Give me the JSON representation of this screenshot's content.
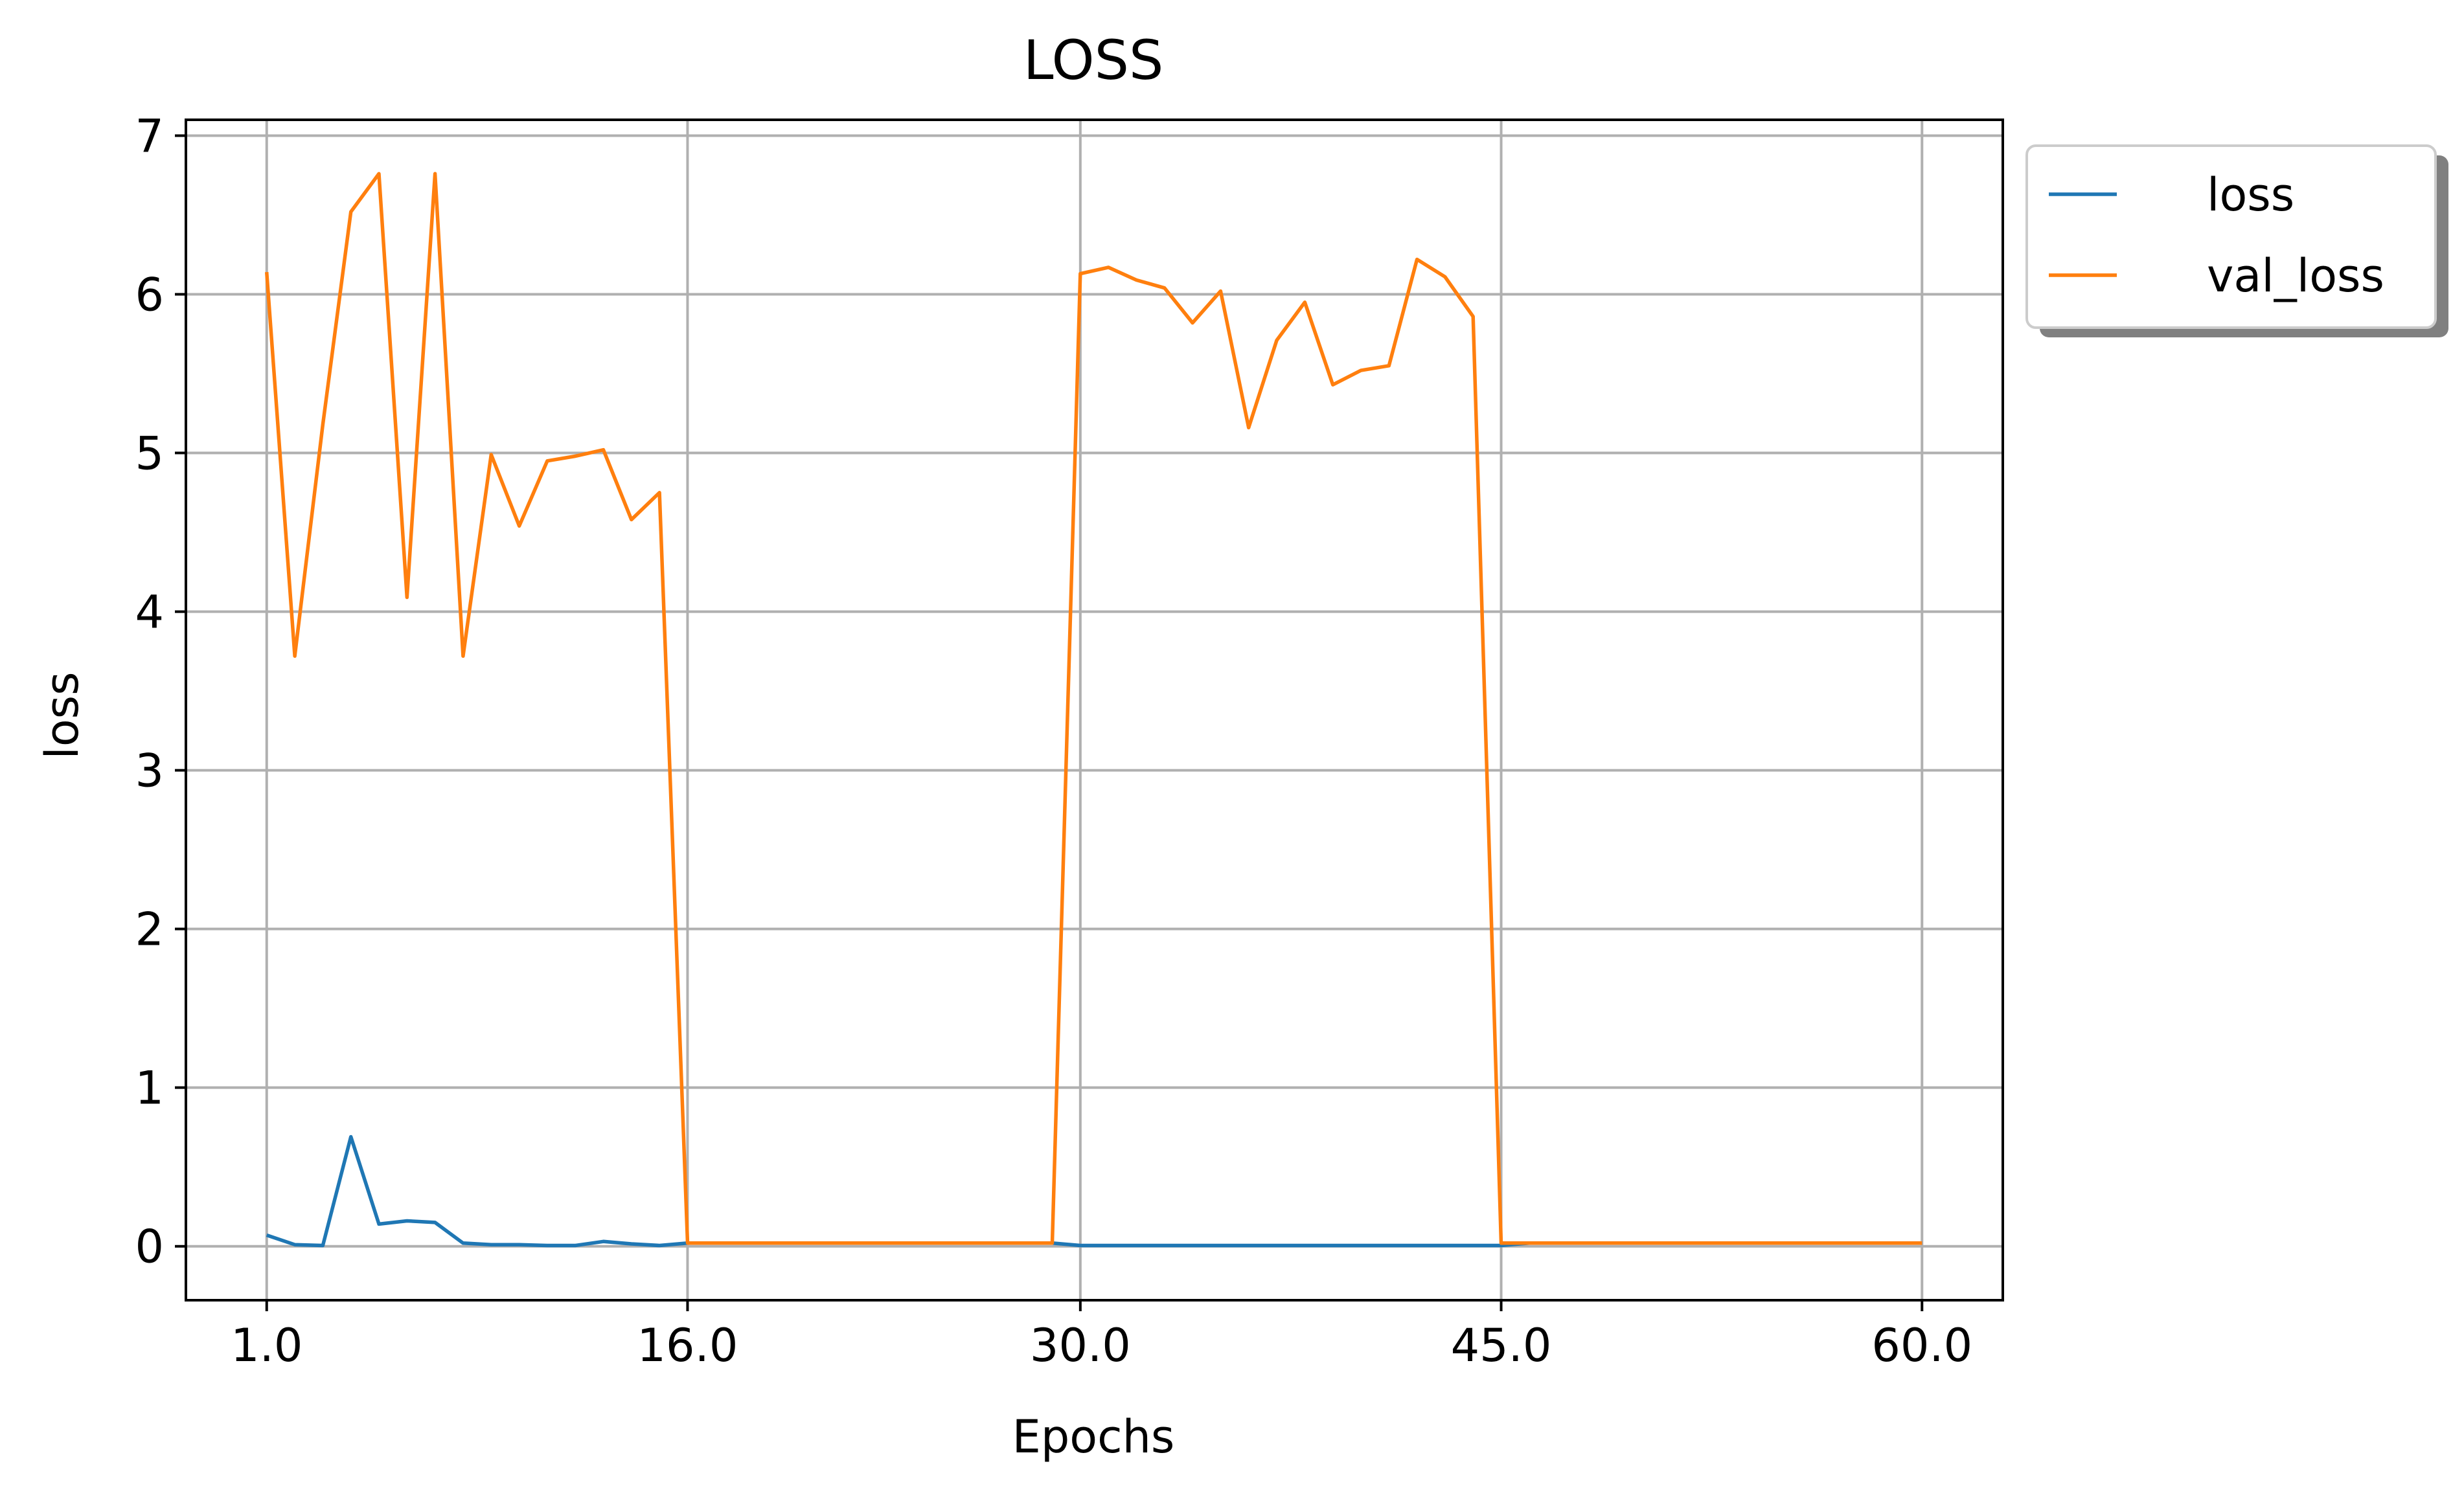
{
  "chart_data": {
    "type": "line",
    "title": "LOSS",
    "xlabel": "Epochs",
    "ylabel": "loss",
    "xlim": [
      -1.88,
      62.88
    ],
    "ylim": [
      -0.34,
      7.1
    ],
    "xticks": [
      1,
      16,
      30,
      45,
      60
    ],
    "xtick_labels": [
      "1.0",
      "16.0",
      "30.0",
      "45.0",
      "60.0"
    ],
    "yticks": [
      0,
      1,
      2,
      3,
      4,
      5,
      6,
      7
    ],
    "ytick_labels": [
      "0",
      "1",
      "2",
      "3",
      "4",
      "5",
      "6",
      "7"
    ],
    "grid": true,
    "legend_position": "outside top-right",
    "x": [
      1,
      2,
      3,
      4,
      5,
      6,
      7,
      8,
      9,
      10,
      11,
      12,
      13,
      14,
      15,
      16,
      17,
      18,
      19,
      20,
      21,
      22,
      23,
      24,
      25,
      26,
      27,
      28,
      29,
      30,
      31,
      32,
      33,
      34,
      35,
      36,
      37,
      38,
      39,
      40,
      41,
      42,
      43,
      44,
      45,
      46,
      47,
      48,
      49,
      50,
      51,
      52,
      53,
      54,
      55,
      56,
      57,
      58,
      59,
      60
    ],
    "series": [
      {
        "name": "loss",
        "color": "#1f77b4",
        "values": [
          0.07,
          0.01,
          0.005,
          0.69,
          0.14,
          0.16,
          0.15,
          0.02,
          0.01,
          0.01,
          0.005,
          0.005,
          0.03,
          0.015,
          0.005,
          0.02,
          0.02,
          0.02,
          0.02,
          0.02,
          0.02,
          0.02,
          0.02,
          0.02,
          0.02,
          0.02,
          0.02,
          0.02,
          0.02,
          0.005,
          0.005,
          0.005,
          0.005,
          0.005,
          0.005,
          0.005,
          0.005,
          0.005,
          0.005,
          0.005,
          0.005,
          0.005,
          0.005,
          0.005,
          0.005,
          0.02,
          0.02,
          0.02,
          0.02,
          0.02,
          0.02,
          0.02,
          0.02,
          0.02,
          0.02,
          0.02,
          0.02,
          0.02,
          0.02,
          0.02
        ]
      },
      {
        "name": "val_loss",
        "color": "#ff7f0e",
        "values": [
          6.14,
          3.72,
          5.18,
          6.52,
          6.76,
          4.09,
          6.76,
          3.72,
          4.99,
          4.54,
          4.95,
          4.98,
          5.02,
          4.58,
          4.75,
          0.02,
          0.02,
          0.02,
          0.02,
          0.02,
          0.02,
          0.02,
          0.02,
          0.02,
          0.02,
          0.02,
          0.02,
          0.02,
          0.02,
          6.13,
          6.17,
          6.09,
          6.04,
          5.82,
          6.02,
          5.16,
          5.71,
          5.95,
          5.43,
          5.52,
          5.55,
          6.22,
          6.11,
          5.86,
          0.02,
          0.02,
          0.02,
          0.02,
          0.02,
          0.02,
          0.02,
          0.02,
          0.02,
          0.02,
          0.02,
          0.02,
          0.02,
          0.02,
          0.02,
          0.02
        ]
      }
    ]
  }
}
